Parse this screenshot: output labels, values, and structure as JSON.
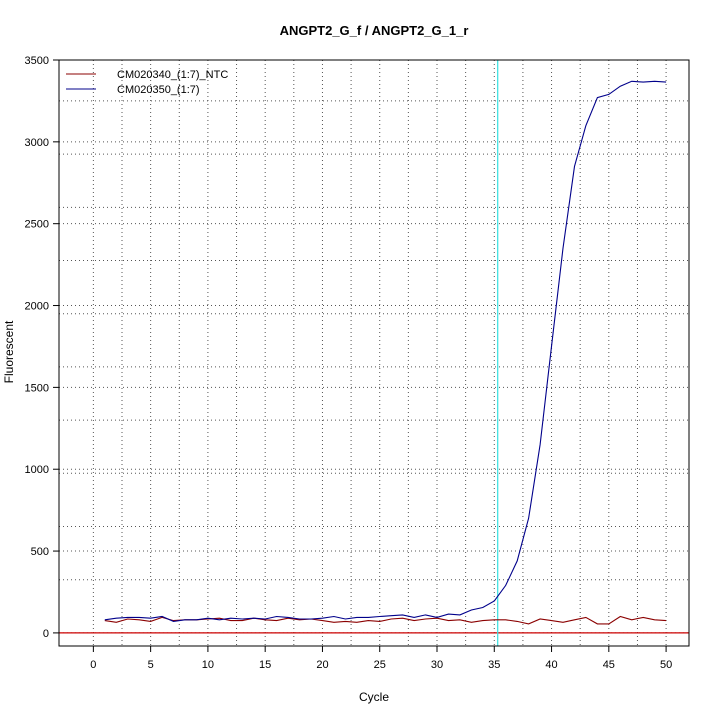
{
  "chart_data": {
    "type": "line",
    "title": "ANGPT2_G_f / ANGPT2_G_1_r",
    "xlabel": "Cycle",
    "ylabel": "Fluorescent",
    "xlim": [
      -3,
      52
    ],
    "ylim": [
      -80,
      3500
    ],
    "x_ticks": [
      0,
      5,
      10,
      15,
      20,
      25,
      30,
      35,
      40,
      45,
      50
    ],
    "y_ticks": [
      0,
      500,
      1000,
      1500,
      2000,
      2500,
      3000,
      3500
    ],
    "x_grid": [
      2.5,
      7.5,
      12.5,
      17.5,
      22.5,
      27.5,
      32.5,
      37.5,
      42.5,
      47.5
    ],
    "y_grid": [
      325,
      650,
      975,
      1300,
      1625,
      1950,
      2275,
      2600,
      2925,
      3250
    ],
    "grid": true,
    "legend_position": "top-left",
    "threshold_line": {
      "y": 0,
      "color": "#cc0000"
    },
    "cycle_marker": {
      "x": 35.3,
      "color": "#33e0e0"
    },
    "x": [
      1,
      2,
      3,
      4,
      5,
      6,
      7,
      8,
      9,
      10,
      11,
      12,
      13,
      14,
      15,
      16,
      17,
      18,
      19,
      20,
      21,
      22,
      23,
      24,
      25,
      26,
      27,
      28,
      29,
      30,
      31,
      32,
      33,
      34,
      35,
      36,
      37,
      38,
      39,
      40,
      41,
      42,
      43,
      44,
      45,
      46,
      47,
      48,
      49,
      50
    ],
    "series": [
      {
        "name": "CM020340_(1:7)_NTC",
        "color": "#8b0000",
        "values": [
          75,
          65,
          85,
          80,
          70,
          95,
          75,
          80,
          80,
          85,
          90,
          75,
          75,
          90,
          80,
          75,
          90,
          80,
          85,
          75,
          65,
          70,
          65,
          75,
          70,
          85,
          90,
          75,
          85,
          90,
          75,
          80,
          65,
          75,
          80,
          80,
          70,
          55,
          85,
          75,
          65,
          80,
          95,
          55,
          55,
          100,
          80,
          95,
          80,
          75
        ]
      },
      {
        "name": "CM020350_(1:7)",
        "color": "#00008b",
        "values": [
          80,
          90,
          95,
          95,
          90,
          100,
          70,
          80,
          80,
          90,
          80,
          90,
          85,
          90,
          85,
          100,
          95,
          85,
          85,
          90,
          100,
          85,
          95,
          95,
          100,
          105,
          110,
          95,
          110,
          95,
          115,
          110,
          140,
          155,
          195,
          290,
          440,
          700,
          1150,
          1750,
          2350,
          2850,
          3100,
          3270,
          3290,
          3340,
          3370,
          3365,
          3370,
          3365
        ]
      }
    ]
  }
}
